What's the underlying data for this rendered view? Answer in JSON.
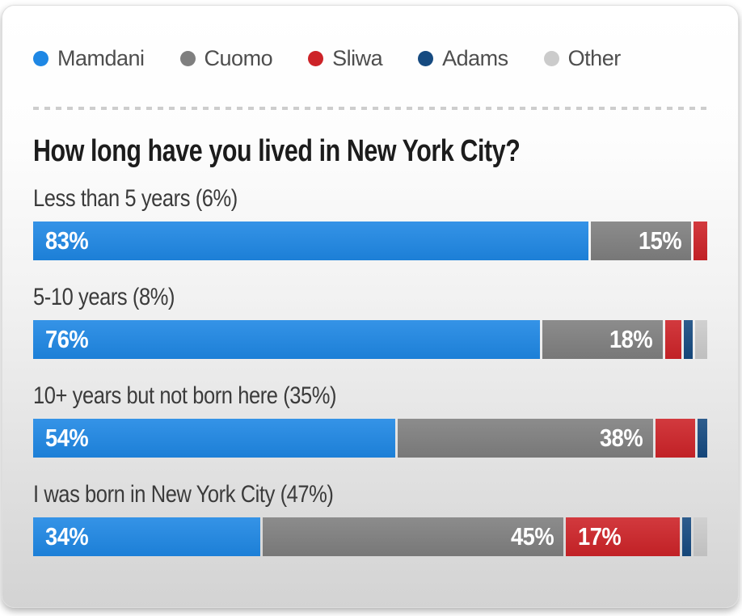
{
  "colors": {
    "Mamdani": "#1e87e4",
    "Cuomo": "#7f7f7f",
    "Sliwa": "#cd2328",
    "Adams": "#164a80",
    "Other": "#cbcbcb"
  },
  "legend": {
    "items": [
      {
        "label": "Mamdani"
      },
      {
        "label": "Cuomo"
      },
      {
        "label": "Sliwa"
      },
      {
        "label": "Adams"
      },
      {
        "label": "Other"
      }
    ]
  },
  "chart_data": {
    "type": "bar",
    "stacked": true,
    "orientation": "horizontal",
    "title": "How long have you lived in New York City?",
    "series_names": [
      "Mamdani",
      "Cuomo",
      "Sliwa",
      "Adams",
      "Other"
    ],
    "axis_range": [
      0,
      100
    ],
    "grid": false,
    "legend_position": "top",
    "groups": [
      {
        "label": "Less than 5 years (6%)",
        "segments": [
          {
            "name": "Mamdani",
            "value": 83,
            "label": "83%",
            "align": "left"
          },
          {
            "name": "Cuomo",
            "value": 15,
            "label": "15%",
            "align": "right"
          },
          {
            "name": "Sliwa",
            "value": 2,
            "label": "",
            "align": "left"
          }
        ]
      },
      {
        "label": "5-10 years (8%)",
        "segments": [
          {
            "name": "Mamdani",
            "value": 76,
            "label": "76%",
            "align": "left"
          },
          {
            "name": "Cuomo",
            "value": 18,
            "label": "18%",
            "align": "right"
          },
          {
            "name": "Sliwa",
            "value": 2.4,
            "label": "",
            "align": "left"
          },
          {
            "name": "Adams",
            "value": 1.4,
            "label": "",
            "align": "left"
          },
          {
            "name": "Other",
            "value": 1.8,
            "label": "",
            "align": "left"
          }
        ]
      },
      {
        "label": "10+ years but not born here (35%)",
        "segments": [
          {
            "name": "Mamdani",
            "value": 54,
            "label": "54%",
            "align": "left"
          },
          {
            "name": "Cuomo",
            "value": 38,
            "label": "38%",
            "align": "right"
          },
          {
            "name": "Sliwa",
            "value": 6,
            "label": "",
            "align": "left"
          },
          {
            "name": "Adams",
            "value": 1.4,
            "label": "",
            "align": "left"
          }
        ]
      },
      {
        "label": "I was born in New York City (47%)",
        "segments": [
          {
            "name": "Mamdani",
            "value": 34,
            "label": "34%",
            "align": "left"
          },
          {
            "name": "Cuomo",
            "value": 45,
            "label": "45%",
            "align": "right"
          },
          {
            "name": "Sliwa",
            "value": 17,
            "label": "17%",
            "align": "left"
          },
          {
            "name": "Adams",
            "value": 1.4,
            "label": "",
            "align": "left"
          },
          {
            "name": "Other",
            "value": 2,
            "label": "",
            "align": "left"
          }
        ]
      }
    ]
  }
}
